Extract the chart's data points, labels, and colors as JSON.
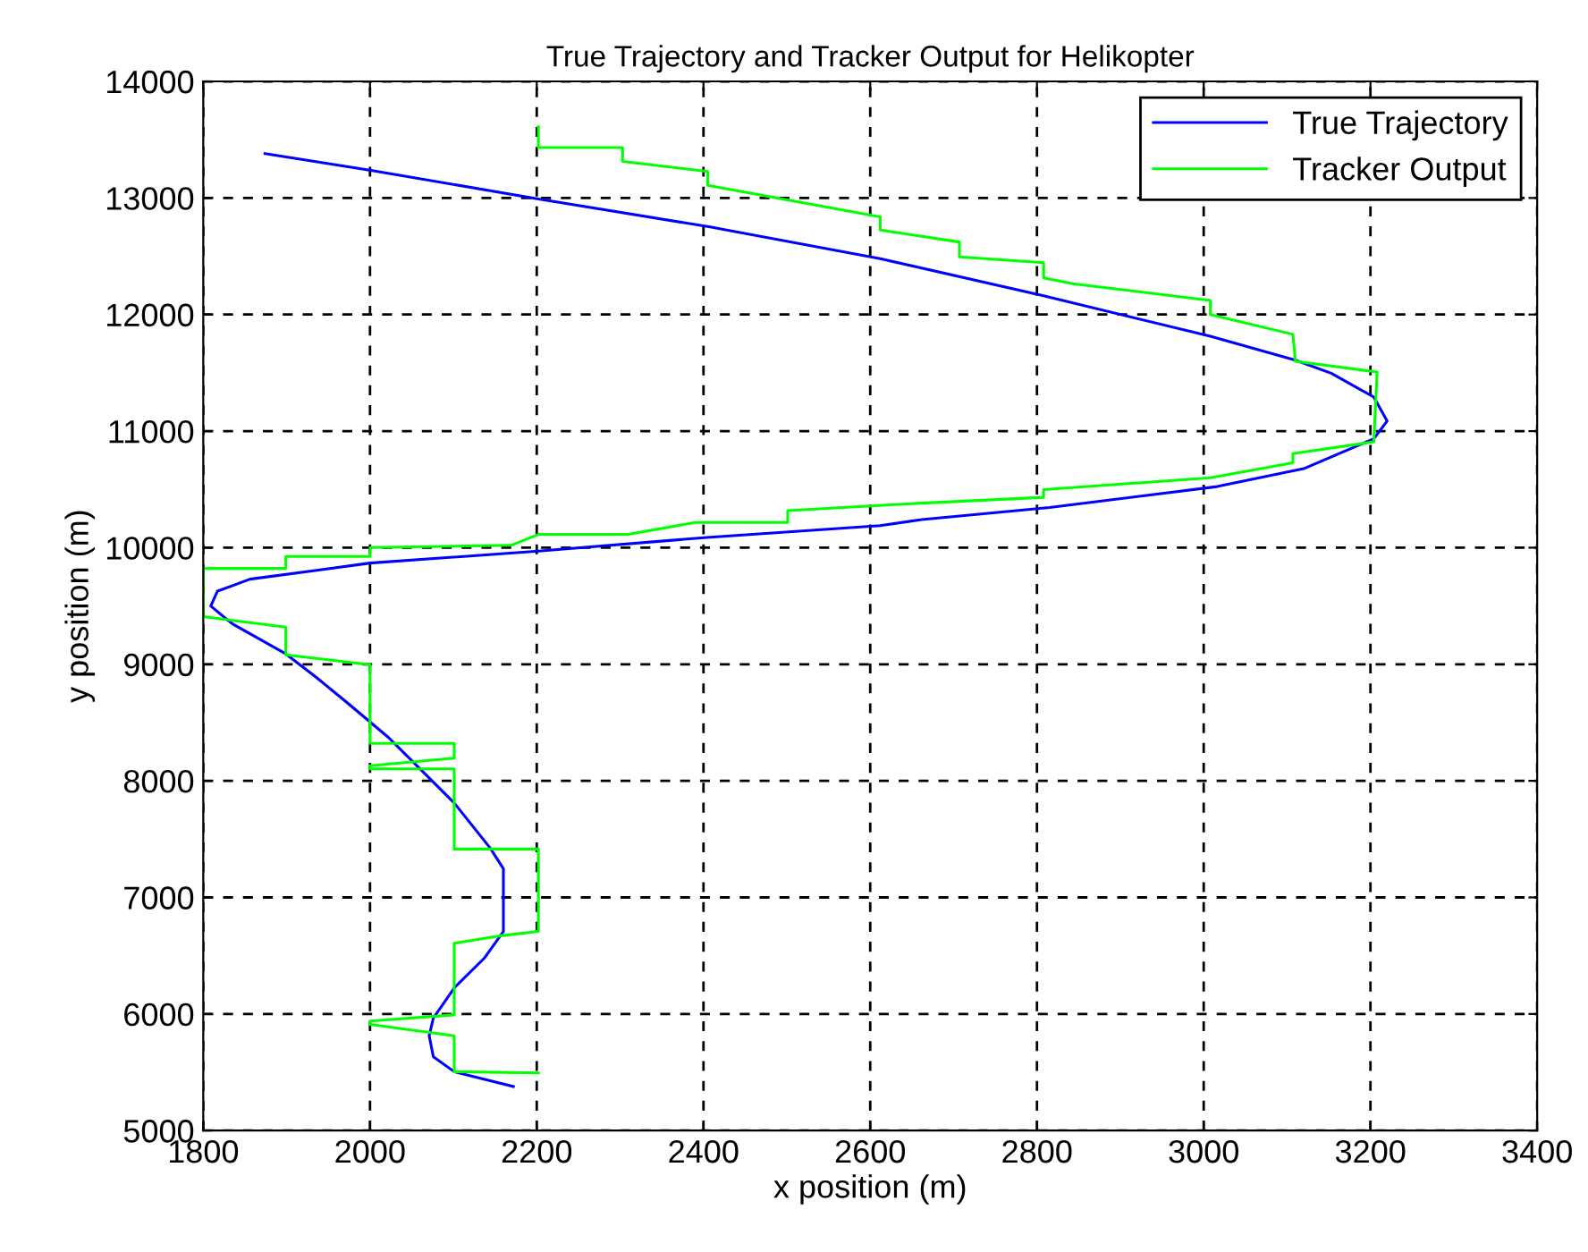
{
  "chart_data": {
    "type": "line",
    "title": "True Trajectory and Tracker Output for Helikopter",
    "xlabel": "x position (m)",
    "ylabel": "y position (m)",
    "xlim": [
      1800,
      3400
    ],
    "xticks": [
      1800,
      2000,
      2200,
      2400,
      2600,
      2800,
      3000,
      3200,
      3400
    ],
    "ylim": [
      5000,
      14000
    ],
    "yticks": [
      5000,
      6000,
      7000,
      8000,
      9000,
      10000,
      11000,
      12000,
      13000,
      14000
    ],
    "grid": true,
    "legend": "top right",
    "marker": "none",
    "line_style": "solid",
    "series": [
      {
        "name": "True Trajectory",
        "color": "#0000ff",
        "x": [
          2172,
          2101,
          2076,
          2071,
          2076,
          2101,
          2137,
          2160,
          2160,
          2144,
          2101,
          2058,
          2022,
          1971,
          1936,
          1899,
          1835,
          1809,
          1817,
          1856,
          1936,
          2000,
          2202,
          2404,
          2612,
          2662,
          2815,
          3016,
          3120,
          3204,
          3220,
          3204,
          3153,
          3110,
          3008,
          2808,
          2612,
          2408,
          2202,
          2001,
          1874
        ],
        "values": [
          5378,
          5505,
          5633,
          5813,
          5966,
          6223,
          6478,
          6708,
          7246,
          7425,
          7810,
          8117,
          8373,
          8680,
          8885,
          9089,
          9346,
          9500,
          9627,
          9730,
          9806,
          9868,
          9971,
          10088,
          10190,
          10241,
          10344,
          10524,
          10678,
          10934,
          11086,
          11292,
          11496,
          11608,
          11813,
          12161,
          12479,
          12751,
          12991,
          13237,
          13381
        ]
      },
      {
        "name": "Tracker Output",
        "color": "#00ff00",
        "x": [
          2202,
          2101,
          2101,
          2000,
          2000,
          2101,
          2101,
          2159,
          2202,
          2202,
          2101,
          2101,
          2000,
          2000,
          2101,
          2101,
          2000,
          2000,
          1899,
          1899,
          1800,
          1800,
          1899,
          1899,
          2000,
          2000,
          2169,
          2202,
          2310,
          2390,
          2501,
          2501,
          2656,
          2808,
          2808,
          3008,
          3107,
          3107,
          3204,
          3208,
          3110,
          3107,
          3008,
          3008,
          2843,
          2808,
          2808,
          2707,
          2707,
          2612,
          2612,
          2405,
          2405,
          2303,
          2303,
          2202,
          2202
        ],
        "values": [
          5495,
          5505,
          5813,
          5910,
          5940,
          5992,
          6607,
          6673,
          6708,
          7415,
          7415,
          8102,
          8102,
          8130,
          8194,
          8322,
          8322,
          8997,
          9080,
          9319,
          9408,
          9822,
          9822,
          9925,
          9925,
          10002,
          10020,
          10114,
          10114,
          10216,
          10216,
          10318,
          10380,
          10432,
          10498,
          10600,
          10728,
          10806,
          10908,
          11507,
          11599,
          11830,
          11999,
          12121,
          12264,
          12315,
          12444,
          12495,
          12622,
          12725,
          12838,
          13109,
          13227,
          13314,
          13432,
          13432,
          13611
        ]
      }
    ]
  }
}
